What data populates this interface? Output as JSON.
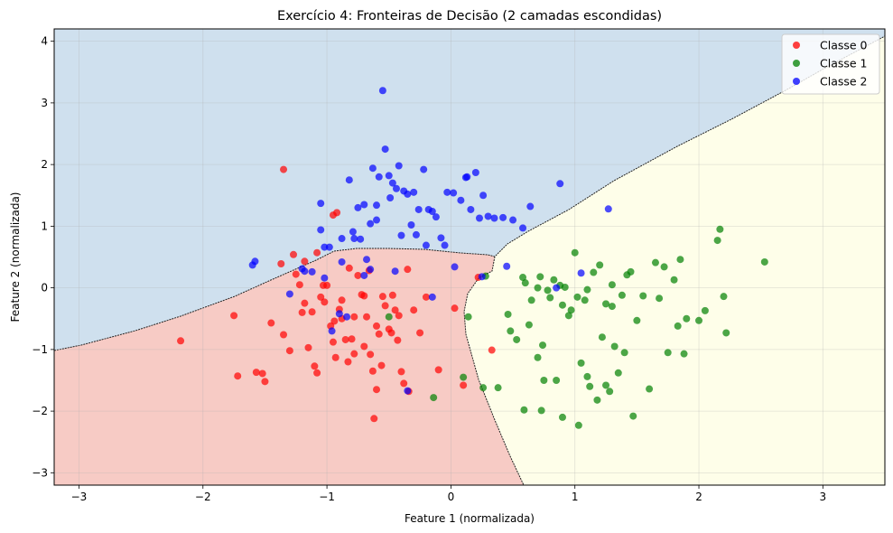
{
  "chart_data": {
    "type": "scatter",
    "title": "Exercício 4: Fronteiras de Decisão (2 camadas escondidas)",
    "xlabel": "Feature 1 (normalizada)",
    "ylabel": "Feature 2 (normalizada)",
    "xlim": [
      -3.2,
      3.5
    ],
    "ylim": [
      -3.2,
      4.2
    ],
    "xticks": [
      -3,
      -2,
      -1,
      0,
      1,
      2,
      3
    ],
    "yticks": [
      -3,
      -2,
      -1,
      0,
      1,
      2,
      3,
      4
    ],
    "grid": true,
    "legend_position": "top-right",
    "regions": [
      {
        "label": "Classe 0",
        "color": "#f7cbc5"
      },
      {
        "label": "Classe 1",
        "color": "#fefee9"
      },
      {
        "label": "Classe 2",
        "color": "#cfe0ee"
      }
    ],
    "series": [
      {
        "name": "Classe 0",
        "color": "#ff0000",
        "points": [
          [
            -2.18,
            -0.86
          ],
          [
            -1.75,
            -0.45
          ],
          [
            -1.72,
            -1.43
          ],
          [
            -1.57,
            -1.37
          ],
          [
            -1.52,
            -1.39
          ],
          [
            -1.5,
            -1.52
          ],
          [
            -1.45,
            -0.57
          ],
          [
            -1.37,
            0.39
          ],
          [
            -1.35,
            1.92
          ],
          [
            -1.3,
            -1.02
          ],
          [
            -1.27,
            0.54
          ],
          [
            -1.25,
            0.22
          ],
          [
            -1.22,
            0.05
          ],
          [
            -1.2,
            -0.4
          ],
          [
            -1.18,
            0.43
          ],
          [
            -1.15,
            -0.97
          ],
          [
            -1.12,
            -0.39
          ],
          [
            -1.1,
            -1.27
          ],
          [
            -1.08,
            -1.38
          ],
          [
            -1.05,
            -0.15
          ],
          [
            -1.02,
            -0.23
          ],
          [
            -1.0,
            0.04
          ],
          [
            -0.97,
            -0.62
          ],
          [
            -0.95,
            -0.88
          ],
          [
            -0.93,
            -1.13
          ],
          [
            -0.9,
            -0.35
          ],
          [
            -0.88,
            -0.5
          ],
          [
            -0.85,
            -0.84
          ],
          [
            -0.83,
            -1.2
          ],
          [
            -0.8,
            -0.83
          ],
          [
            -0.78,
            -0.47
          ],
          [
            -0.75,
            0.2
          ],
          [
            -0.72,
            -0.11
          ],
          [
            -0.7,
            -0.13
          ],
          [
            -0.68,
            -0.47
          ],
          [
            -0.65,
            -1.08
          ],
          [
            -0.63,
            -1.35
          ],
          [
            -0.6,
            -0.62
          ],
          [
            -0.58,
            -0.75
          ],
          [
            -0.55,
            -0.14
          ],
          [
            -0.53,
            -0.29
          ],
          [
            -0.5,
            -0.67
          ],
          [
            -0.48,
            -0.73
          ],
          [
            -0.45,
            -0.36
          ],
          [
            -0.43,
            -0.85
          ],
          [
            -0.4,
            -1.36
          ],
          [
            -0.38,
            -1.55
          ],
          [
            -0.35,
            0.3
          ],
          [
            -0.3,
            -0.36
          ],
          [
            -0.25,
            -0.73
          ],
          [
            -0.2,
            -0.15
          ],
          [
            -0.1,
            -1.33
          ],
          [
            0.03,
            -0.33
          ],
          [
            0.1,
            -1.58
          ],
          [
            0.22,
            0.17
          ],
          [
            0.33,
            -1.01
          ],
          [
            -0.62,
            -2.12
          ],
          [
            -0.92,
            1.22
          ],
          [
            -0.95,
            1.18
          ],
          [
            -1.08,
            0.57
          ],
          [
            -1.03,
            0.04
          ],
          [
            -0.66,
            0.28
          ],
          [
            -0.82,
            0.32
          ],
          [
            -0.47,
            -0.12
          ],
          [
            -1.35,
            -0.76
          ],
          [
            -0.78,
            -1.07
          ],
          [
            -0.6,
            -1.65
          ],
          [
            -1.18,
            -0.25
          ],
          [
            -0.88,
            -0.2
          ],
          [
            -0.7,
            -0.95
          ],
          [
            -0.56,
            -1.26
          ],
          [
            -0.34,
            -1.68
          ],
          [
            -0.94,
            -0.54
          ],
          [
            -0.42,
            -0.45
          ]
        ]
      },
      {
        "name": "Classe 1",
        "color": "#008000",
        "points": [
          [
            -0.5,
            -0.47
          ],
          [
            -0.14,
            -1.78
          ],
          [
            0.1,
            -1.45
          ],
          [
            0.14,
            -0.47
          ],
          [
            0.26,
            -1.62
          ],
          [
            0.28,
            0.19
          ],
          [
            0.38,
            -1.62
          ],
          [
            0.46,
            -0.43
          ],
          [
            0.48,
            -0.7
          ],
          [
            0.53,
            -0.84
          ],
          [
            0.58,
            0.17
          ],
          [
            0.59,
            -1.98
          ],
          [
            0.6,
            0.08
          ],
          [
            0.63,
            -0.6
          ],
          [
            0.65,
            -0.2
          ],
          [
            0.7,
            -1.13
          ],
          [
            0.72,
            0.18
          ],
          [
            0.73,
            -1.99
          ],
          [
            0.74,
            -0.93
          ],
          [
            0.75,
            -1.5
          ],
          [
            0.78,
            -0.04
          ],
          [
            0.8,
            -0.16
          ],
          [
            0.83,
            0.13
          ],
          [
            0.85,
            -1.5
          ],
          [
            0.88,
            0.04
          ],
          [
            0.9,
            -0.28
          ],
          [
            0.92,
            0.01
          ],
          [
            0.95,
            -0.45
          ],
          [
            0.97,
            -0.36
          ],
          [
            1.0,
            0.57
          ],
          [
            1.02,
            -0.15
          ],
          [
            1.03,
            -2.23
          ],
          [
            1.05,
            -1.22
          ],
          [
            1.08,
            -0.2
          ],
          [
            1.1,
            -1.44
          ],
          [
            1.12,
            -1.6
          ],
          [
            1.15,
            0.25
          ],
          [
            1.18,
            -1.82
          ],
          [
            1.2,
            0.37
          ],
          [
            1.22,
            -0.8
          ],
          [
            1.25,
            -0.26
          ],
          [
            1.28,
            -1.68
          ],
          [
            1.3,
            -0.3
          ],
          [
            1.32,
            -0.95
          ],
          [
            1.35,
            -1.38
          ],
          [
            1.38,
            -0.12
          ],
          [
            1.4,
            -1.05
          ],
          [
            1.42,
            0.21
          ],
          [
            1.45,
            0.26
          ],
          [
            1.47,
            -2.08
          ],
          [
            1.5,
            -0.53
          ],
          [
            1.55,
            -0.13
          ],
          [
            1.6,
            -1.64
          ],
          [
            1.65,
            0.41
          ],
          [
            1.68,
            -0.17
          ],
          [
            1.72,
            0.34
          ],
          [
            1.75,
            -1.05
          ],
          [
            1.8,
            0.13
          ],
          [
            1.83,
            -0.62
          ],
          [
            1.85,
            0.46
          ],
          [
            1.88,
            -1.07
          ],
          [
            1.9,
            -0.5
          ],
          [
            2.0,
            -0.53
          ],
          [
            2.05,
            -0.37
          ],
          [
            2.15,
            0.77
          ],
          [
            2.17,
            0.95
          ],
          [
            2.2,
            -0.14
          ],
          [
            2.22,
            -0.73
          ],
          [
            2.53,
            0.42
          ],
          [
            0.9,
            -2.1
          ],
          [
            1.25,
            -1.58
          ],
          [
            0.7,
            0.0
          ],
          [
            1.1,
            -0.03
          ],
          [
            1.3,
            0.05
          ]
        ]
      },
      {
        "name": "Classe 2",
        "color": "#0000ff",
        "points": [
          [
            -1.6,
            0.37
          ],
          [
            -1.58,
            0.43
          ],
          [
            -1.3,
            -0.1
          ],
          [
            -1.2,
            0.31
          ],
          [
            -1.18,
            0.27
          ],
          [
            -1.05,
            1.37
          ],
          [
            -1.05,
            0.94
          ],
          [
            -1.02,
            0.66
          ],
          [
            -0.98,
            0.66
          ],
          [
            -0.96,
            -0.7
          ],
          [
            -0.9,
            -0.42
          ],
          [
            -0.88,
            0.42
          ],
          [
            -0.84,
            -0.47
          ],
          [
            -0.82,
            1.75
          ],
          [
            -0.79,
            0.91
          ],
          [
            -0.75,
            1.3
          ],
          [
            -0.73,
            0.79
          ],
          [
            -0.7,
            1.35
          ],
          [
            -0.68,
            0.46
          ],
          [
            -0.65,
            1.04
          ],
          [
            -0.63,
            1.94
          ],
          [
            -0.6,
            1.34
          ],
          [
            -0.58,
            1.8
          ],
          [
            -0.55,
            3.2
          ],
          [
            -0.53,
            2.25
          ],
          [
            -0.5,
            1.82
          ],
          [
            -0.49,
            1.46
          ],
          [
            -0.47,
            1.7
          ],
          [
            -0.44,
            1.61
          ],
          [
            -0.42,
            1.98
          ],
          [
            -0.38,
            1.57
          ],
          [
            -0.35,
            1.52
          ],
          [
            -0.32,
            1.02
          ],
          [
            -0.3,
            1.55
          ],
          [
            -0.28,
            0.86
          ],
          [
            -0.22,
            1.92
          ],
          [
            -0.2,
            0.69
          ],
          [
            -0.18,
            1.27
          ],
          [
            -0.15,
            1.24
          ],
          [
            -0.08,
            0.81
          ],
          [
            -0.05,
            0.69
          ],
          [
            -0.03,
            1.55
          ],
          [
            0.02,
            1.54
          ],
          [
            0.08,
            1.42
          ],
          [
            0.12,
            1.79
          ],
          [
            0.16,
            1.27
          ],
          [
            0.2,
            1.87
          ],
          [
            0.23,
            1.13
          ],
          [
            0.26,
            1.5
          ],
          [
            0.3,
            1.16
          ],
          [
            0.35,
            1.13
          ],
          [
            0.42,
            1.14
          ],
          [
            0.5,
            1.1
          ],
          [
            0.58,
            0.97
          ],
          [
            0.64,
            1.32
          ],
          [
            0.88,
            1.69
          ],
          [
            1.27,
            1.28
          ],
          [
            0.85,
            0.0
          ],
          [
            1.05,
            0.24
          ],
          [
            0.45,
            0.35
          ],
          [
            0.25,
            0.18
          ],
          [
            0.03,
            0.34
          ],
          [
            -0.15,
            -0.15
          ],
          [
            -0.35,
            -1.67
          ],
          [
            -0.65,
            0.3
          ],
          [
            -0.7,
            0.2
          ],
          [
            -0.88,
            0.8
          ],
          [
            -0.6,
            1.1
          ],
          [
            -0.4,
            0.85
          ],
          [
            -0.12,
            1.15
          ],
          [
            0.13,
            1.8
          ],
          [
            -0.26,
            1.27
          ],
          [
            -0.78,
            0.8
          ],
          [
            -0.45,
            0.27
          ],
          [
            -1.12,
            0.26
          ],
          [
            -1.02,
            0.16
          ]
        ]
      }
    ]
  }
}
